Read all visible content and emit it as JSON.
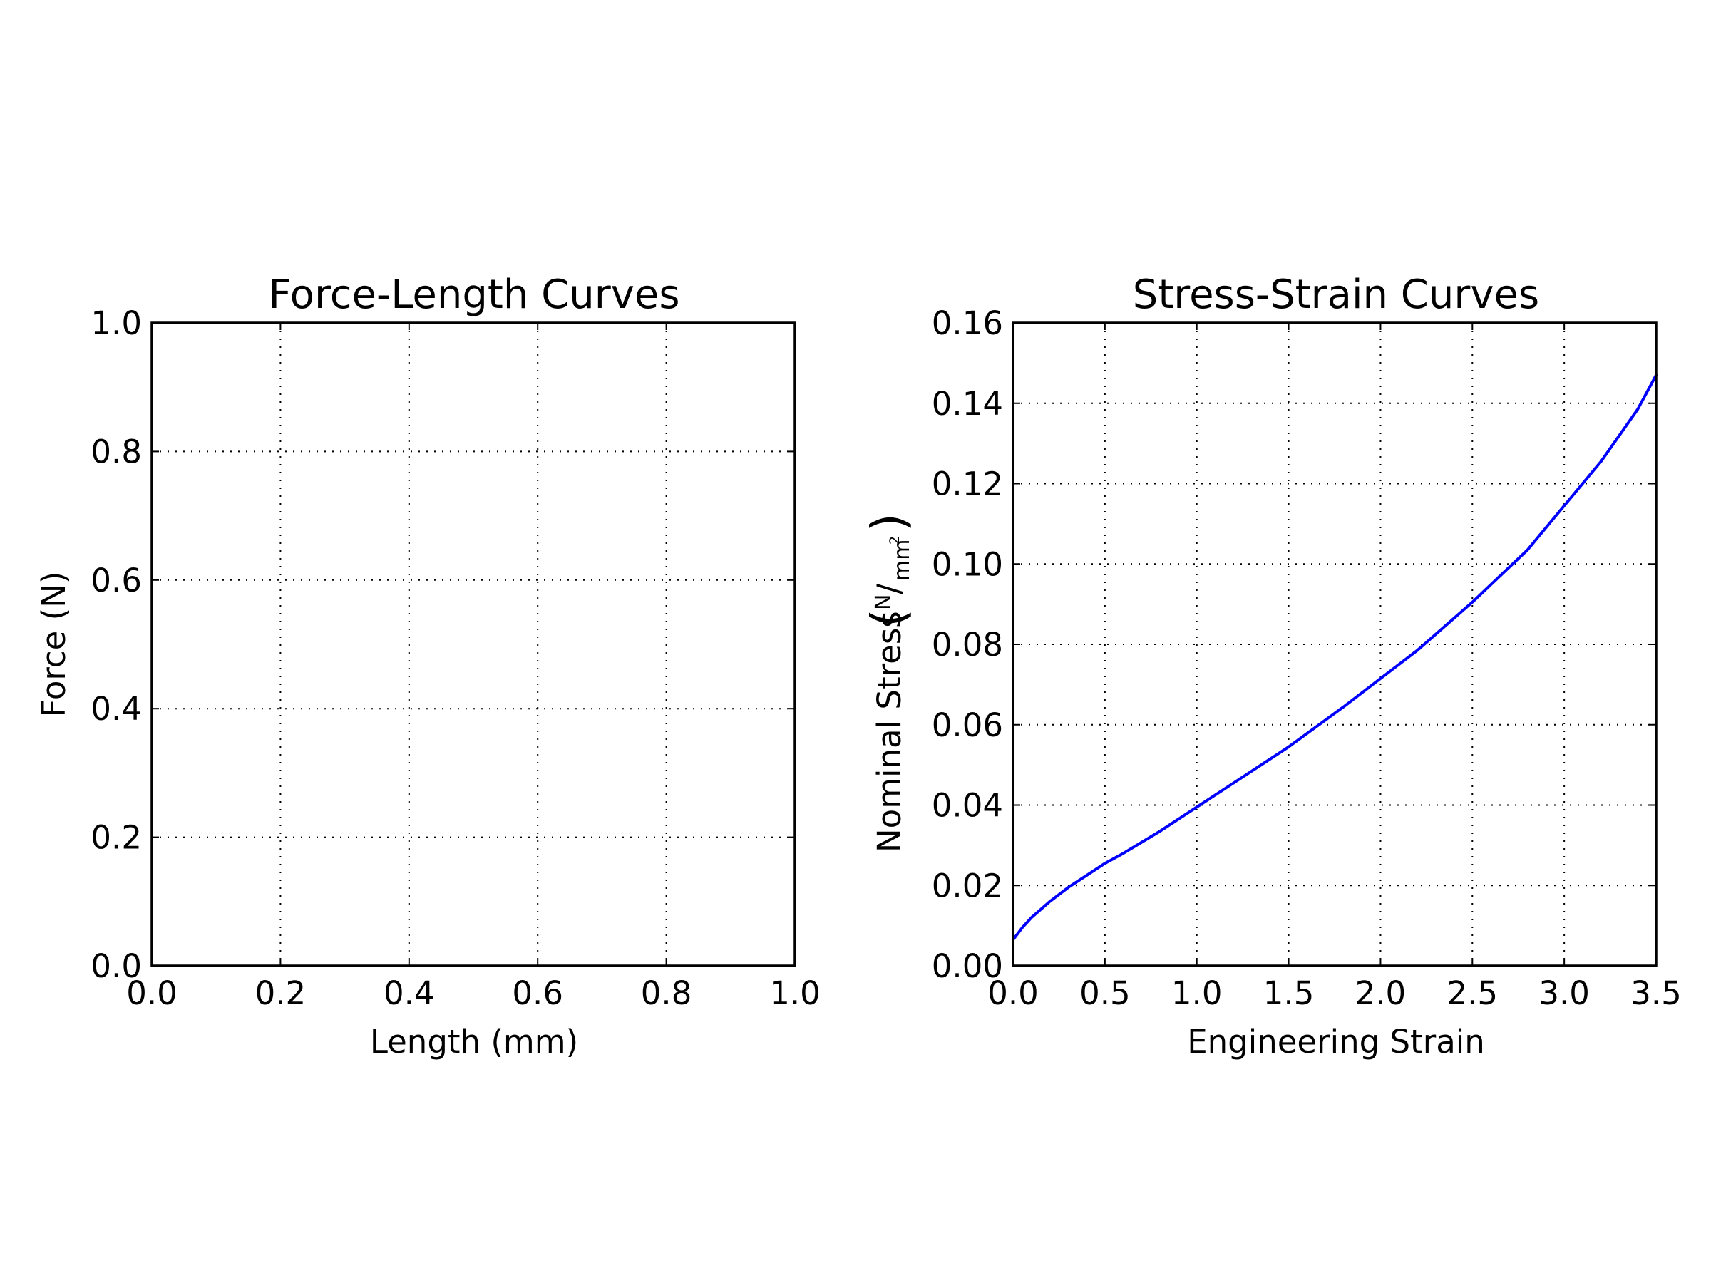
{
  "chart_data": [
    {
      "type": "line",
      "title": "Force-Length Curves",
      "xlabel": "Length (mm)",
      "ylabel": "Force (N)",
      "xlim": [
        0.0,
        1.0
      ],
      "ylim": [
        0.0,
        1.0
      ],
      "xticks": [
        "0.0",
        "0.2",
        "0.4",
        "0.6",
        "0.8",
        "1.0"
      ],
      "yticks": [
        "0.0",
        "0.2",
        "0.4",
        "0.6",
        "0.8",
        "1.0"
      ],
      "grid": true,
      "series": []
    },
    {
      "type": "line",
      "title": "Stress-Strain Curves",
      "xlabel": "Engineering Strain",
      "ylabel": {
        "text": "Nominal Stress",
        "unit_numerator": "N",
        "unit_denominator": "mm",
        "unit_exponent": "2"
      },
      "xlim": [
        0.0,
        3.5
      ],
      "ylim": [
        0.0,
        0.16
      ],
      "xticks": [
        "0.0",
        "0.5",
        "1.0",
        "1.5",
        "2.0",
        "2.5",
        "3.0",
        "3.5"
      ],
      "yticks": [
        "0.00",
        "0.02",
        "0.04",
        "0.06",
        "0.08",
        "0.10",
        "0.12",
        "0.14",
        "0.16"
      ],
      "grid": true,
      "series": [
        {
          "color": "#0000ff",
          "x": [
            0.0,
            0.05,
            0.1,
            0.2,
            0.3,
            0.4,
            0.5,
            0.6,
            0.8,
            1.0,
            1.2,
            1.5,
            1.8,
            2.0,
            2.2,
            2.5,
            2.8,
            3.0,
            3.2,
            3.4,
            3.5
          ],
          "y": [
            0.0065,
            0.0095,
            0.012,
            0.016,
            0.0195,
            0.0225,
            0.0255,
            0.028,
            0.0335,
            0.0395,
            0.0455,
            0.0545,
            0.0645,
            0.0715,
            0.0785,
            0.0905,
            0.1035,
            0.1145,
            0.1255,
            0.1385,
            0.147
          ]
        }
      ]
    }
  ]
}
